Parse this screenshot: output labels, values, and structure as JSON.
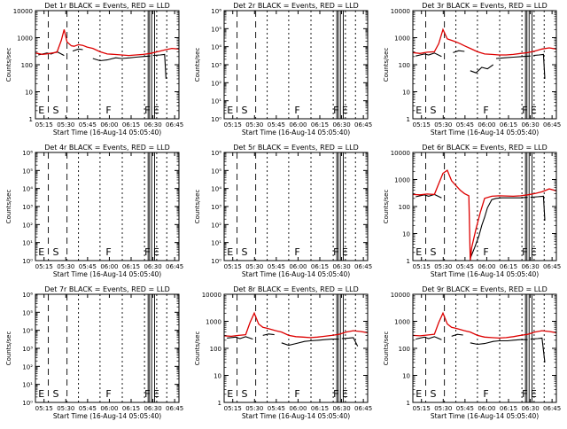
{
  "figure": {
    "start_time_label": "Start Time (16-Aug-14 05:05:40)",
    "y_label": "Counts/sec",
    "colors": {
      "events": "#000000",
      "lld": "#dd0000",
      "axes": "#000000"
    }
  },
  "chart_data": [
    {
      "type": "line",
      "panel": 1,
      "title": "Det 1r BLACK = Events, RED = LLD",
      "xlabel": "Start Time (16-Aug-14 05:05:40)",
      "ylabel": "Counts/sec",
      "xticks": [
        "05:15",
        "05:30",
        "05:45",
        "06:00",
        "06:15",
        "06:30",
        "06:45"
      ],
      "yscale": "log",
      "ylim": [
        1,
        10000
      ],
      "yticks": [
        "1",
        "10",
        "100",
        "1000",
        "10000"
      ],
      "markers": [
        "E",
        "S",
        "F",
        "F",
        "E"
      ],
      "has_data": true,
      "series": [
        {
          "name": "Events",
          "x": [
            0.02,
            0.08,
            0.11,
            0.15,
            0.2
          ],
          "y": [
            230,
            270,
            250,
            300,
            220
          ]
        },
        {
          "name": "Events",
          "x": [
            0.26,
            0.3,
            0.33
          ],
          "y": [
            320,
            380,
            360
          ]
        },
        {
          "name": "Events",
          "x": [
            0.4,
            0.45,
            0.5,
            0.56,
            0.6,
            0.66,
            0.7,
            0.75,
            0.8
          ],
          "y": [
            170,
            140,
            150,
            180,
            170,
            180,
            190,
            200,
            210
          ]
        },
        {
          "name": "Events",
          "x": [
            0.82,
            0.87,
            0.9,
            0.91
          ],
          "y": [
            220,
            230,
            240,
            30
          ]
        },
        {
          "name": "LLD",
          "x": [
            0.0,
            0.05,
            0.1,
            0.15,
            0.18,
            0.2,
            0.22,
            0.25,
            0.27,
            0.3,
            0.33,
            0.36,
            0.4,
            0.45,
            0.5,
            0.55,
            0.6,
            0.65,
            0.7,
            0.75,
            0.8,
            0.85,
            0.9,
            0.95,
            1.0
          ],
          "y": [
            270,
            240,
            260,
            290,
            800,
            2000,
            700,
            500,
            480,
            550,
            520,
            450,
            400,
            300,
            250,
            240,
            230,
            220,
            230,
            240,
            260,
            300,
            350,
            400,
            380
          ]
        }
      ]
    },
    {
      "type": "line",
      "panel": 2,
      "title": "Det 2r BLACK = Events, RED = LLD",
      "xlabel": "Start Time (16-Aug-14 05:05:40)",
      "ylabel": "Counts/sec",
      "xticks": [
        "05:15",
        "05:30",
        "05:45",
        "06:00",
        "06:15",
        "06:30",
        "06:45"
      ],
      "yscale": "log",
      "ylim": [
        1,
        1000000
      ],
      "yticks": [
        "10⁰",
        "10¹",
        "10²",
        "10³",
        "10⁴",
        "10⁵",
        "10⁶"
      ],
      "markers": [
        "E",
        "S",
        "F",
        "F",
        "E"
      ],
      "has_data": false,
      "series": []
    },
    {
      "type": "line",
      "panel": 3,
      "title": "Det 3r BLACK = Events, RED = LLD",
      "xlabel": "Start Time (16-Aug-14 05:05:40)",
      "ylabel": "Counts/sec",
      "xticks": [
        "05:15",
        "05:30",
        "05:45",
        "06:00",
        "06:15",
        "06:30",
        "06:45"
      ],
      "yscale": "log",
      "ylim": [
        1,
        10000
      ],
      "yticks": [
        "1",
        "10",
        "100",
        "1000",
        "10000"
      ],
      "markers": [
        "E",
        "S",
        "F",
        "F",
        "E"
      ],
      "has_data": true,
      "series": [
        {
          "name": "Events",
          "x": [
            0.02,
            0.08,
            0.11,
            0.15,
            0.2
          ],
          "y": [
            210,
            250,
            230,
            270,
            200
          ]
        },
        {
          "name": "Events",
          "x": [
            0.28,
            0.32,
            0.36
          ],
          "y": [
            280,
            330,
            310
          ]
        },
        {
          "name": "Events",
          "x": [
            0.4,
            0.44,
            0.48,
            0.52,
            0.56
          ],
          "y": [
            60,
            50,
            80,
            70,
            100
          ]
        },
        {
          "name": "Events",
          "x": [
            0.58,
            0.64,
            0.7,
            0.76,
            0.82
          ],
          "y": [
            170,
            180,
            190,
            200,
            210
          ]
        },
        {
          "name": "Events",
          "x": [
            0.84,
            0.88,
            0.91,
            0.92
          ],
          "y": [
            220,
            230,
            240,
            30
          ]
        },
        {
          "name": "LLD",
          "x": [
            0.0,
            0.05,
            0.1,
            0.15,
            0.18,
            0.21,
            0.24,
            0.27,
            0.3,
            0.33,
            0.36,
            0.4,
            0.45,
            0.5,
            0.55,
            0.6,
            0.65,
            0.7,
            0.75,
            0.8,
            0.85,
            0.9,
            0.95,
            1.0
          ],
          "y": [
            280,
            260,
            290,
            300,
            600,
            2000,
            900,
            800,
            700,
            600,
            500,
            400,
            300,
            250,
            240,
            230,
            230,
            240,
            260,
            280,
            320,
            380,
            420,
            380
          ]
        }
      ]
    },
    {
      "type": "line",
      "panel": 4,
      "title": "Det 4r BLACK = Events, RED = LLD",
      "xlabel": "Start Time (16-Aug-14 05:05:40)",
      "ylabel": "Counts/sec",
      "xticks": [
        "05:15",
        "05:30",
        "05:45",
        "06:00",
        "06:15",
        "06:30",
        "06:45"
      ],
      "yscale": "log",
      "ylim": [
        1,
        1000000
      ],
      "yticks": [
        "10⁰",
        "10¹",
        "10²",
        "10³",
        "10⁴",
        "10⁵",
        "10⁶"
      ],
      "markers": [
        "E",
        "S",
        "F",
        "F",
        "E"
      ],
      "has_data": false,
      "series": []
    },
    {
      "type": "line",
      "panel": 5,
      "title": "Det 5r BLACK = Events, RED = LLD",
      "xlabel": "Start Time (16-Aug-14 05:05:40)",
      "ylabel": "Counts/sec",
      "xticks": [
        "05:15",
        "05:30",
        "05:45",
        "06:00",
        "06:15",
        "06:30",
        "06:45"
      ],
      "yscale": "log",
      "ylim": [
        1,
        1000000
      ],
      "yticks": [
        "10⁰",
        "10¹",
        "10²",
        "10³",
        "10⁴",
        "10⁵",
        "10⁶"
      ],
      "markers": [
        "E",
        "S",
        "F",
        "F",
        "E"
      ],
      "has_data": false,
      "series": []
    },
    {
      "type": "line",
      "panel": 6,
      "title": "Det 6r BLACK = Events, RED = LLD",
      "xlabel": "Start Time (16-Aug-14 05:05:40)",
      "ylabel": "Counts/sec",
      "xticks": [
        "05:15",
        "05:30",
        "05:45",
        "06:00",
        "06:15",
        "06:30",
        "06:45"
      ],
      "yscale": "log",
      "ylim": [
        1,
        10000
      ],
      "yticks": [
        "1",
        "10",
        "100",
        "1000",
        "10000"
      ],
      "markers": [
        "E",
        "S",
        "F",
        "F",
        "E"
      ],
      "has_data": true,
      "series": [
        {
          "name": "Events",
          "x": [
            0.02,
            0.08,
            0.11,
            0.15,
            0.2
          ],
          "y": [
            230,
            270,
            240,
            280,
            210
          ]
        },
        {
          "name": "Events",
          "x": [
            0.4,
            0.43,
            0.46,
            0.48,
            0.5,
            0.52,
            0.55,
            0.58,
            0.62,
            0.66,
            0.7,
            0.75,
            0.8
          ],
          "y": [
            1.2,
            3,
            8,
            20,
            40,
            90,
            180,
            200,
            210,
            210,
            210,
            210,
            220
          ]
        },
        {
          "name": "Events",
          "x": [
            0.82,
            0.87,
            0.91,
            0.92
          ],
          "y": [
            220,
            230,
            240,
            30
          ]
        },
        {
          "name": "LLD",
          "x": [
            0.0,
            0.05,
            0.1,
            0.15,
            0.18,
            0.21,
            0.24,
            0.27,
            0.3,
            0.33,
            0.36,
            0.39,
            0.4,
            0.41,
            0.44,
            0.47,
            0.5,
            0.55,
            0.6,
            0.65,
            0.7,
            0.75,
            0.8,
            0.85,
            0.9,
            0.95,
            1.0
          ],
          "y": [
            280,
            270,
            290,
            280,
            700,
            1700,
            2200,
            900,
            600,
            400,
            300,
            250,
            1,
            3,
            15,
            60,
            200,
            240,
            250,
            245,
            240,
            250,
            270,
            300,
            350,
            450,
            380
          ]
        }
      ]
    },
    {
      "type": "line",
      "panel": 7,
      "title": "Det 7r BLACK = Events, RED = LLD",
      "xlabel": "Start Time (16-Aug-14 05:05:40)",
      "ylabel": "Counts/sec",
      "xticks": [
        "05:15",
        "05:30",
        "05:45",
        "06:00",
        "06:15",
        "06:30",
        "06:45"
      ],
      "yscale": "log",
      "ylim": [
        1,
        1000000
      ],
      "yticks": [
        "10⁰",
        "10¹",
        "10²",
        "10³",
        "10⁴",
        "10⁵",
        "10⁶"
      ],
      "markers": [
        "E",
        "S",
        "F",
        "F",
        "E"
      ],
      "has_data": false,
      "series": []
    },
    {
      "type": "line",
      "panel": 8,
      "title": "Det 8r BLACK = Events, RED = LLD",
      "xlabel": "Start Time (16-Aug-14 05:05:40)",
      "ylabel": "Counts/sec",
      "xticks": [
        "05:15",
        "05:30",
        "05:45",
        "06:00",
        "06:15",
        "06:30",
        "06:45"
      ],
      "yscale": "log",
      "ylim": [
        1,
        10000
      ],
      "yticks": [
        "1",
        "10",
        "100",
        "1000",
        "10000"
      ],
      "markers": [
        "E",
        "S",
        "F",
        "F",
        "E"
      ],
      "has_data": true,
      "series": [
        {
          "name": "Events",
          "x": [
            0.02,
            0.08,
            0.11,
            0.15,
            0.2
          ],
          "y": [
            240,
            260,
            230,
            270,
            220
          ]
        },
        {
          "name": "Events",
          "x": [
            0.27,
            0.31,
            0.35
          ],
          "y": [
            300,
            340,
            320
          ]
        },
        {
          "name": "Events",
          "x": [
            0.4,
            0.45,
            0.5,
            0.56,
            0.6,
            0.66,
            0.7,
            0.75,
            0.8
          ],
          "y": [
            160,
            130,
            150,
            180,
            190,
            200,
            210,
            220,
            220
          ]
        },
        {
          "name": "Events",
          "x": [
            0.82,
            0.87,
            0.9,
            0.93
          ],
          "y": [
            230,
            240,
            250,
            120
          ]
        },
        {
          "name": "LLD",
          "x": [
            0.0,
            0.05,
            0.1,
            0.15,
            0.18,
            0.21,
            0.24,
            0.27,
            0.3,
            0.33,
            0.36,
            0.4,
            0.45,
            0.5,
            0.55,
            0.6,
            0.65,
            0.7,
            0.75,
            0.8,
            0.85,
            0.9,
            0.95,
            1.0
          ],
          "y": [
            290,
            280,
            300,
            320,
            900,
            2000,
            800,
            600,
            550,
            500,
            450,
            400,
            300,
            270,
            260,
            250,
            260,
            280,
            300,
            330,
            400,
            450,
            420,
            380
          ]
        }
      ]
    },
    {
      "type": "line",
      "panel": 9,
      "title": "Det 9r BLACK = Events, RED = LLD",
      "xlabel": "Start Time (16-Aug-14 05:05:40)",
      "ylabel": "Counts/sec",
      "xticks": [
        "05:15",
        "05:30",
        "05:45",
        "06:00",
        "06:15",
        "06:30",
        "06:45"
      ],
      "yscale": "log",
      "ylim": [
        1,
        10000
      ],
      "yticks": [
        "1",
        "10",
        "100",
        "1000",
        "10000"
      ],
      "markers": [
        "E",
        "S",
        "F",
        "F",
        "E"
      ],
      "has_data": true,
      "series": [
        {
          "name": "Events",
          "x": [
            0.02,
            0.08,
            0.11,
            0.15,
            0.2
          ],
          "y": [
            220,
            260,
            230,
            270,
            210
          ]
        },
        {
          "name": "Events",
          "x": [
            0.27,
            0.31,
            0.35
          ],
          "y": [
            280,
            330,
            310
          ]
        },
        {
          "name": "Events",
          "x": [
            0.4,
            0.45,
            0.5,
            0.56,
            0.6,
            0.66,
            0.7,
            0.75,
            0.8
          ],
          "y": [
            160,
            140,
            150,
            180,
            190,
            190,
            200,
            210,
            210
          ]
        },
        {
          "name": "Events",
          "x": [
            0.82,
            0.87,
            0.9,
            0.92
          ],
          "y": [
            220,
            230,
            240,
            30
          ]
        },
        {
          "name": "LLD",
          "x": [
            0.0,
            0.05,
            0.1,
            0.15,
            0.18,
            0.21,
            0.24,
            0.27,
            0.3,
            0.33,
            0.36,
            0.4,
            0.45,
            0.5,
            0.55,
            0.6,
            0.65,
            0.7,
            0.75,
            0.8,
            0.85,
            0.9,
            0.95,
            1.0
          ],
          "y": [
            300,
            290,
            310,
            330,
            900,
            2000,
            800,
            600,
            550,
            500,
            450,
            400,
            300,
            260,
            250,
            240,
            250,
            270,
            300,
            330,
            400,
            450,
            420,
            380
          ]
        }
      ]
    }
  ]
}
